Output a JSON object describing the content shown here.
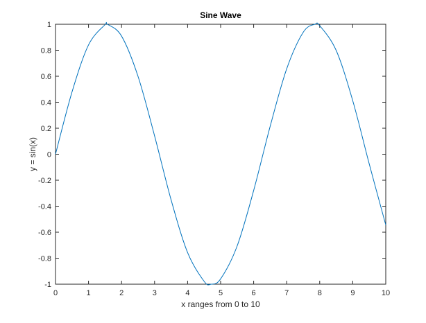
{
  "chart_data": {
    "type": "line",
    "title": "Sine Wave",
    "xlabel": "x ranges from 0 to 10",
    "ylabel": "y = sin(x)",
    "xlim": [
      0,
      10
    ],
    "ylim": [
      -1,
      1
    ],
    "x_ticks": [
      0,
      1,
      2,
      3,
      4,
      5,
      6,
      7,
      8,
      9,
      10
    ],
    "x_tick_labels": [
      "0",
      "1",
      "2",
      "3",
      "4",
      "5",
      "6",
      "7",
      "8",
      "9",
      "10"
    ],
    "y_ticks": [
      -1,
      -0.8,
      -0.6,
      -0.4,
      -0.2,
      0,
      0.2,
      0.4,
      0.6,
      0.8,
      1
    ],
    "y_tick_labels": [
      "-1",
      "-0.8",
      "-0.6",
      "-0.4",
      "-0.2",
      "0",
      "0.2",
      "0.4",
      "0.6",
      "0.8",
      "1"
    ],
    "grid": false,
    "legend": false,
    "series": [
      {
        "line_color": "#0072BD",
        "x": [
          0,
          0.5,
          1,
          1.5,
          1.5708,
          2,
          2.5,
          3,
          3.5,
          4,
          4.5,
          4.7124,
          5,
          5.5,
          6,
          6.5,
          7,
          7.5,
          7.854,
          8,
          8.5,
          9,
          9.5,
          10
        ],
        "y": [
          0,
          0.479,
          0.841,
          0.997,
          1,
          0.909,
          0.598,
          0.141,
          -0.351,
          -0.757,
          -0.978,
          -1,
          -0.959,
          -0.706,
          -0.279,
          0.215,
          0.657,
          0.938,
          1,
          0.989,
          0.798,
          0.412,
          -0.075,
          -0.544
        ]
      }
    ],
    "colors": {
      "axis": "#262626",
      "background": "#ffffff"
    }
  }
}
